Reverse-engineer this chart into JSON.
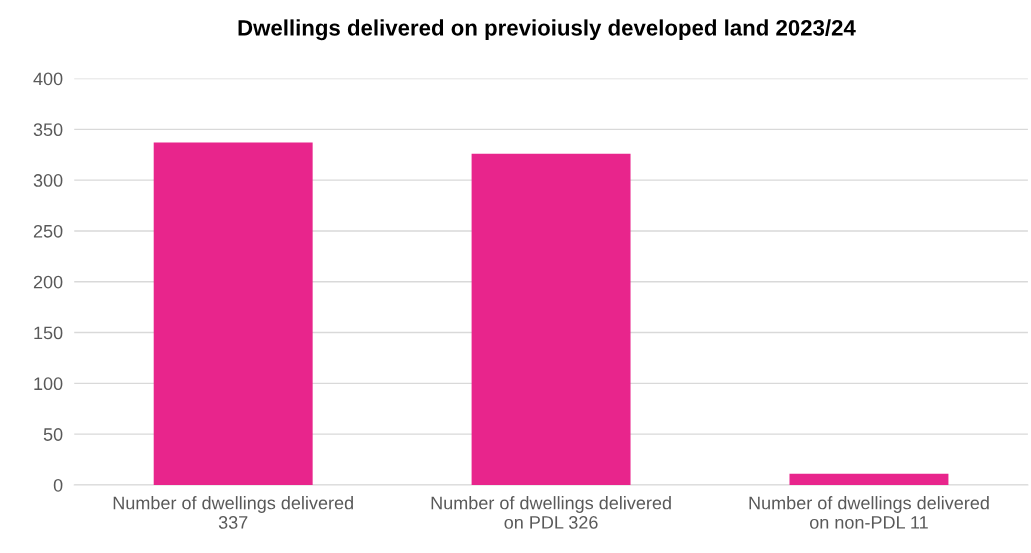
{
  "chart_data": {
    "type": "bar",
    "title": "Dwellings delivered on previoiusly developed land 2023/24",
    "categories": [
      "Number of dwellings delivered\n337",
      "Number of dwellings delivered\non PDL 326",
      "Number of dwellings delivered\non non-PDL 11"
    ],
    "values": [
      337,
      326,
      11
    ],
    "color": "#e8258c",
    "ylim": [
      0,
      400
    ],
    "yticks": [
      0,
      50,
      100,
      150,
      200,
      250,
      300,
      350,
      400
    ],
    "grid": "y"
  }
}
